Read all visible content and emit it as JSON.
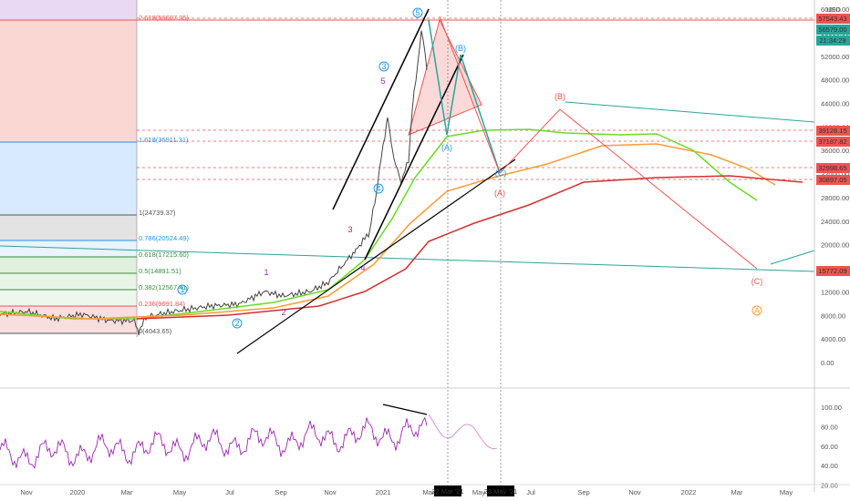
{
  "chart_data": [
    {
      "type": "line",
      "title": "",
      "currency": "USD",
      "x_ticks": [
        "Nov",
        "2020",
        "Mar",
        "May",
        "Jul",
        "Sep",
        "Nov",
        "2021",
        "Mar",
        "May",
        "Jul",
        "Sep",
        "Nov",
        "2022",
        "Mar",
        "May"
      ],
      "y_ticks": [
        "60000.00",
        "56000.00",
        "52000.00",
        "48000.00",
        "44000.00",
        "40000.00",
        "36000.00",
        "32000.00",
        "28000.00",
        "24000.00",
        "20000.00",
        "16000.00",
        "12000.00",
        "8000.00",
        "4000.00",
        "0.00"
      ],
      "date_markers": [
        "22 Mar '21",
        "23 May '21"
      ],
      "price_tags": [
        {
          "label": "57543.43",
          "color": "#ef5350"
        },
        {
          "label": "56579.00",
          "color": "#26a69a"
        },
        {
          "label": "21:34:29",
          "color": "#26a69a"
        },
        {
          "label": "39128.15",
          "color": "#ef5350"
        },
        {
          "label": "37187.82",
          "color": "#ef5350"
        },
        {
          "label": "32998.65",
          "color": "#ef5350"
        },
        {
          "label": "30897.05",
          "color": "#ef5350"
        },
        {
          "label": "15772.09",
          "color": "#ef5350"
        }
      ],
      "fib_levels": [
        {
          "label": "2.618(56607.05)",
          "color": "#ef5350"
        },
        {
          "label": "1.618(36911.31)",
          "color": "#2196f3"
        },
        {
          "label": "1(24739.37)",
          "color": "#555555"
        },
        {
          "label": "0.786(20524.49)",
          "color": "#2196f3"
        },
        {
          "label": "0.618(17215.60)",
          "color": "#388e3c"
        },
        {
          "label": "0.5(14891.51)",
          "color": "#388e3c"
        },
        {
          "label": "0.382(12567.41)",
          "color": "#388e3c"
        },
        {
          "label": "0.236(9691.84)",
          "color": "#ef5350"
        },
        {
          "label": "0(4043.65)",
          "color": "#555555"
        }
      ],
      "wave_labels": [
        "1",
        "2",
        "3",
        "4",
        "5",
        "(A)",
        "(B)",
        "(C)",
        "A",
        "5",
        "3",
        "2",
        "1",
        "4"
      ],
      "abc_labels": [
        "(A)",
        "(B)",
        "(C)",
        "(A)",
        "(B)",
        "(C)",
        "A"
      ],
      "price_series_approx": {
        "x": [
          "Nov",
          "2020",
          "Mar",
          "May",
          "Jul",
          "Sep",
          "Nov",
          "2021",
          "Mar"
        ],
        "y": [
          7500,
          7200,
          6000,
          9000,
          9500,
          11500,
          15500,
          33000,
          58000
        ]
      },
      "series": [
        {
          "name": "",
          "color": "#66dd22"
        },
        {
          "name": "",
          "color": "#ff9b33"
        },
        {
          "name": "",
          "color": "#d32f2f"
        }
      ],
      "colors": {
        "fib_top": "#ef5350",
        "fib_mid": "#2196f3",
        "rsi": "#9c27b0",
        "ma_green": "#66dd22",
        "ma_orange": "#ff9b33",
        "ma_red": "#d32f2f",
        "channel": "#26a69a"
      }
    },
    {
      "type": "line",
      "title": "",
      "y_ticks": [
        "100.00",
        "80.00",
        "60.00",
        "40.00",
        "20.00"
      ],
      "series": [
        {
          "name": "",
          "color": "#9c27b0"
        }
      ]
    }
  ]
}
